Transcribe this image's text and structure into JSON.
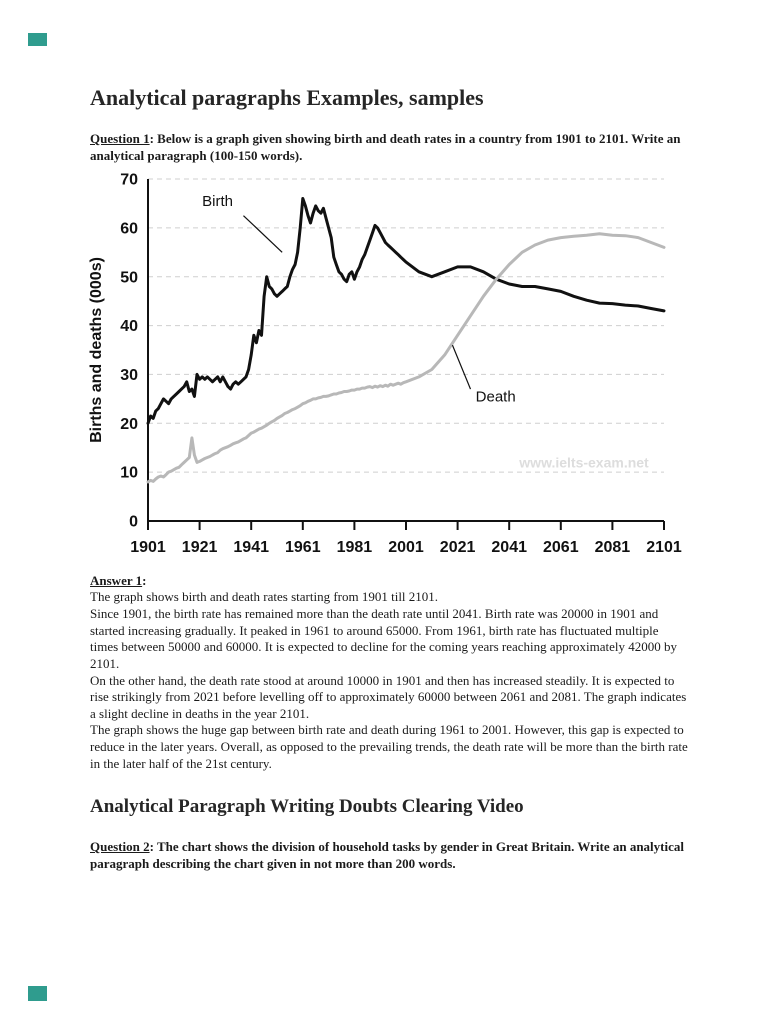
{
  "accents": {
    "corner_teal": "#2f9c8e"
  },
  "page": {
    "title": "Analytical paragraphs Examples, samples",
    "question1": {
      "label": "Question 1",
      "text": ": Below is a graph given showing birth and death rates in a country from 1901 to 2101. Write an analytical paragraph (100-150 words)."
    },
    "answer1": {
      "label": "Answer 1",
      "colon": ":",
      "paragraphs": [
        "The graph shows birth and death rates starting from 1901 till 2101.",
        "Since 1901, the birth rate has remained more than the death rate until 2041. Birth rate was 20000 in 1901 and started increasing gradually. It peaked in 1961 to around 65000. From 1961, birth rate has fluctuated multiple times between 50000 and 60000. It is expected to decline for the coming years reaching approximately 42000 by 2101.",
        "On the other hand, the death rate stood at around 10000 in 1901 and then has increased steadily. It is expected to rise strikingly from 2021 before levelling off to approximately 60000 between 2061 and 2081. The graph indicates a slight decline in deaths in the year 2101.",
        "The graph shows the huge gap between birth rate and death during 1961 to 2001. However, this gap is expected to reduce in the later years. Overall, as opposed to the prevailing trends, the death rate will be more than the birth rate in the later half of the 21st century."
      ]
    },
    "heading2": "Analytical Paragraph Writing Doubts Clearing Video",
    "question2": {
      "label": "Question 2",
      "text": ": The chart shows the division of household tasks by gender in Great Britain. Write an analytical paragraph describing the chart given in not more than 200 words."
    }
  },
  "chart_data": {
    "type": "line",
    "title": "",
    "xlabel": "",
    "ylabel": "Births and deaths (000s)",
    "xlim": [
      1901,
      2101
    ],
    "ylim": [
      0,
      70
    ],
    "yticks": [
      0,
      10,
      20,
      30,
      40,
      50,
      60,
      70
    ],
    "xticks": [
      1901,
      1921,
      1941,
      1961,
      1981,
      2001,
      2021,
      2041,
      2061,
      2081,
      2101
    ],
    "grid": "dashed-horizontal",
    "legend": "inline-annotations",
    "watermark": {
      "text": "www.ielts-exam.net",
      "year": 2070,
      "value": 11
    },
    "series": [
      {
        "name": "Birth",
        "color": "#111111",
        "points": [
          [
            1901,
            20
          ],
          [
            1902,
            21.5
          ],
          [
            1903,
            21
          ],
          [
            1904,
            22.5
          ],
          [
            1905,
            23
          ],
          [
            1906,
            24
          ],
          [
            1907,
            25
          ],
          [
            1908,
            24.5
          ],
          [
            1909,
            24
          ],
          [
            1910,
            25
          ],
          [
            1911,
            25.5
          ],
          [
            1912,
            26
          ],
          [
            1913,
            26.5
          ],
          [
            1914,
            27
          ],
          [
            1915,
            27.5
          ],
          [
            1916,
            28.5
          ],
          [
            1917,
            26.5
          ],
          [
            1918,
            27
          ],
          [
            1919,
            25.5
          ],
          [
            1920,
            30
          ],
          [
            1921,
            29
          ],
          [
            1922,
            29.5
          ],
          [
            1923,
            29
          ],
          [
            1924,
            29.5
          ],
          [
            1925,
            29
          ],
          [
            1926,
            28.5
          ],
          [
            1927,
            29
          ],
          [
            1928,
            29.5
          ],
          [
            1929,
            28.5
          ],
          [
            1930,
            29.5
          ],
          [
            1931,
            28.5
          ],
          [
            1932,
            27.5
          ],
          [
            1933,
            27
          ],
          [
            1934,
            28
          ],
          [
            1935,
            28.5
          ],
          [
            1936,
            28
          ],
          [
            1937,
            28.5
          ],
          [
            1938,
            29
          ],
          [
            1939,
            29.5
          ],
          [
            1940,
            31
          ],
          [
            1941,
            34
          ],
          [
            1942,
            38
          ],
          [
            1943,
            36.5
          ],
          [
            1944,
            39
          ],
          [
            1945,
            38
          ],
          [
            1946,
            46
          ],
          [
            1947,
            50
          ],
          [
            1948,
            48
          ],
          [
            1949,
            47.5
          ],
          [
            1950,
            46.5
          ],
          [
            1951,
            46
          ],
          [
            1952,
            46.5
          ],
          [
            1953,
            47
          ],
          [
            1954,
            47.5
          ],
          [
            1955,
            48
          ],
          [
            1956,
            50
          ],
          [
            1957,
            51.5
          ],
          [
            1958,
            52.5
          ],
          [
            1959,
            55
          ],
          [
            1960,
            60
          ],
          [
            1961,
            66
          ],
          [
            1962,
            64.5
          ],
          [
            1963,
            62.5
          ],
          [
            1964,
            61
          ],
          [
            1965,
            63
          ],
          [
            1966,
            64.5
          ],
          [
            1967,
            63.5
          ],
          [
            1968,
            63
          ],
          [
            1969,
            64
          ],
          [
            1970,
            62
          ],
          [
            1971,
            60
          ],
          [
            1972,
            58
          ],
          [
            1973,
            54
          ],
          [
            1974,
            52.5
          ],
          [
            1975,
            51
          ],
          [
            1976,
            50.5
          ],
          [
            1977,
            49.5
          ],
          [
            1978,
            49
          ],
          [
            1979,
            50.5
          ],
          [
            1980,
            51
          ],
          [
            1981,
            49.5
          ],
          [
            1982,
            51
          ],
          [
            1983,
            52
          ],
          [
            1984,
            53.5
          ],
          [
            1985,
            54.5
          ],
          [
            1986,
            56
          ],
          [
            1987,
            57.5
          ],
          [
            1988,
            59
          ],
          [
            1989,
            60.5
          ],
          [
            1990,
            60
          ],
          [
            1991,
            59
          ],
          [
            1992,
            58
          ],
          [
            1993,
            57
          ],
          [
            1994,
            56.5
          ],
          [
            1995,
            56
          ],
          [
            1996,
            55.5
          ],
          [
            1997,
            55
          ],
          [
            1998,
            54.5
          ],
          [
            1999,
            54
          ],
          [
            2000,
            53.5
          ],
          [
            2001,
            53
          ],
          [
            2006,
            51
          ],
          [
            2011,
            50
          ],
          [
            2016,
            51
          ],
          [
            2021,
            52
          ],
          [
            2026,
            52
          ],
          [
            2031,
            51
          ],
          [
            2036,
            49.5
          ],
          [
            2041,
            48.5
          ],
          [
            2046,
            48
          ],
          [
            2051,
            48
          ],
          [
            2056,
            47.5
          ],
          [
            2061,
            47
          ],
          [
            2066,
            46
          ],
          [
            2071,
            45.2
          ],
          [
            2076,
            44.6
          ],
          [
            2081,
            44.5
          ],
          [
            2086,
            44.2
          ],
          [
            2091,
            44
          ],
          [
            2096,
            43.5
          ],
          [
            2101,
            43
          ]
        ]
      },
      {
        "name": "Death",
        "color": "#b8b8b8",
        "points": [
          [
            1901,
            8
          ],
          [
            1902,
            8.3
          ],
          [
            1903,
            8.1
          ],
          [
            1904,
            8.6
          ],
          [
            1905,
            9
          ],
          [
            1906,
            9.2
          ],
          [
            1907,
            9
          ],
          [
            1908,
            9.5
          ],
          [
            1909,
            10
          ],
          [
            1910,
            10.2
          ],
          [
            1911,
            10.5
          ],
          [
            1912,
            10.8
          ],
          [
            1913,
            11
          ],
          [
            1914,
            11.5
          ],
          [
            1915,
            12
          ],
          [
            1916,
            12.5
          ],
          [
            1917,
            13
          ],
          [
            1918,
            17
          ],
          [
            1919,
            13.5
          ],
          [
            1920,
            12
          ],
          [
            1921,
            12.2
          ],
          [
            1922,
            12.5
          ],
          [
            1923,
            12.8
          ],
          [
            1924,
            13
          ],
          [
            1925,
            13.2
          ],
          [
            1926,
            13.5
          ],
          [
            1927,
            13.8
          ],
          [
            1928,
            14
          ],
          [
            1929,
            14.5
          ],
          [
            1930,
            14.8
          ],
          [
            1931,
            15
          ],
          [
            1932,
            15.2
          ],
          [
            1933,
            15.5
          ],
          [
            1934,
            15.8
          ],
          [
            1935,
            16
          ],
          [
            1936,
            16.2
          ],
          [
            1937,
            16.5
          ],
          [
            1938,
            16.8
          ],
          [
            1939,
            17
          ],
          [
            1940,
            17.5
          ],
          [
            1941,
            18
          ],
          [
            1942,
            18.2
          ],
          [
            1943,
            18.5
          ],
          [
            1944,
            18.8
          ],
          [
            1945,
            19
          ],
          [
            1946,
            19.3
          ],
          [
            1947,
            19.6
          ],
          [
            1948,
            20
          ],
          [
            1949,
            20.3
          ],
          [
            1950,
            20.6
          ],
          [
            1951,
            21
          ],
          [
            1952,
            21.3
          ],
          [
            1953,
            21.6
          ],
          [
            1954,
            22
          ],
          [
            1955,
            22.2
          ],
          [
            1956,
            22.5
          ],
          [
            1957,
            22.8
          ],
          [
            1958,
            23
          ],
          [
            1959,
            23.3
          ],
          [
            1960,
            23.6
          ],
          [
            1961,
            24
          ],
          [
            1962,
            24.2
          ],
          [
            1963,
            24.5
          ],
          [
            1964,
            24.7
          ],
          [
            1965,
            25
          ],
          [
            1966,
            25
          ],
          [
            1967,
            25.2
          ],
          [
            1968,
            25.3
          ],
          [
            1969,
            25.5
          ],
          [
            1970,
            25.5
          ],
          [
            1971,
            25.6
          ],
          [
            1972,
            25.8
          ],
          [
            1973,
            26
          ],
          [
            1974,
            26
          ],
          [
            1975,
            26.2
          ],
          [
            1976,
            26.3
          ],
          [
            1977,
            26.5
          ],
          [
            1978,
            26.5
          ],
          [
            1979,
            26.6
          ],
          [
            1980,
            26.8
          ],
          [
            1981,
            26.8
          ],
          [
            1982,
            27
          ],
          [
            1983,
            27
          ],
          [
            1984,
            27.2
          ],
          [
            1985,
            27.2
          ],
          [
            1986,
            27.4
          ],
          [
            1987,
            27.5
          ],
          [
            1988,
            27.3
          ],
          [
            1989,
            27.6
          ],
          [
            1990,
            27.4
          ],
          [
            1991,
            27.7
          ],
          [
            1992,
            27.5
          ],
          [
            1993,
            27.8
          ],
          [
            1994,
            27.6
          ],
          [
            1995,
            28
          ],
          [
            1996,
            27.8
          ],
          [
            1997,
            28
          ],
          [
            1998,
            28.2
          ],
          [
            1999,
            28
          ],
          [
            2000,
            28.3
          ],
          [
            2001,
            28.5
          ],
          [
            2006,
            29.5
          ],
          [
            2011,
            31
          ],
          [
            2016,
            34
          ],
          [
            2021,
            38
          ],
          [
            2026,
            42
          ],
          [
            2031,
            46
          ],
          [
            2036,
            49.5
          ],
          [
            2041,
            52.5
          ],
          [
            2046,
            55
          ],
          [
            2051,
            56.5
          ],
          [
            2056,
            57.5
          ],
          [
            2061,
            58
          ],
          [
            2066,
            58.3
          ],
          [
            2071,
            58.5
          ],
          [
            2076,
            58.8
          ],
          [
            2081,
            58.5
          ],
          [
            2086,
            58.4
          ],
          [
            2091,
            58
          ],
          [
            2096,
            57
          ],
          [
            2101,
            56
          ]
        ]
      }
    ],
    "annotations": [
      {
        "text": "Birth",
        "year": 1922,
        "value": 64.5,
        "line": [
          [
            1938,
            62.5
          ],
          [
            1953,
            55
          ]
        ]
      },
      {
        "text": "Death",
        "year": 2028,
        "value": 24.5,
        "line": [
          [
            2026,
            27
          ],
          [
            2019,
            36
          ]
        ]
      }
    ]
  }
}
